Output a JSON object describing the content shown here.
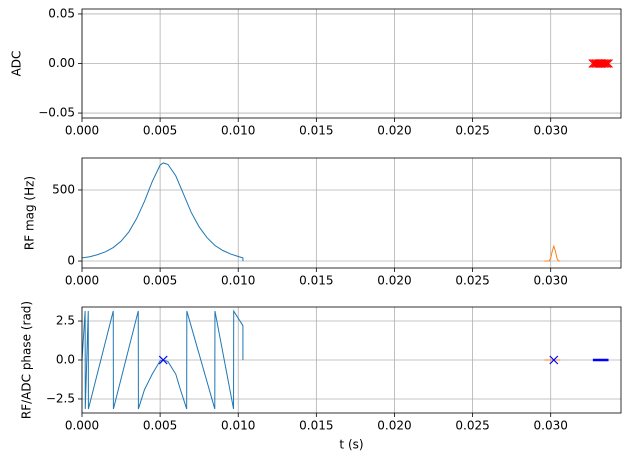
{
  "chart_data": [
    {
      "type": "line",
      "ylabel": "ADC",
      "xlim": [
        0,
        0.0345
      ],
      "ylim": [
        -0.055,
        0.055
      ],
      "xticks": [
        {
          "value": 0,
          "label": "0.000"
        },
        {
          "value": 0.005,
          "label": "0.005"
        },
        {
          "value": 0.01,
          "label": "0.010"
        },
        {
          "value": 0.015,
          "label": "0.015"
        },
        {
          "value": 0.02,
          "label": "0.020"
        },
        {
          "value": 0.025,
          "label": "0.025"
        },
        {
          "value": 0.03,
          "label": "0.030"
        }
      ],
      "yticks": [
        {
          "value": -0.05,
          "label": "−0.05"
        },
        {
          "value": 0,
          "label": "0.00"
        },
        {
          "value": 0.05,
          "label": "0.05"
        }
      ],
      "grid": true,
      "series": [
        {
          "color": "#ff0000",
          "marker": "x",
          "x": [
            0.0327,
            0.0328,
            0.0329,
            0.033,
            0.0331,
            0.0332,
            0.0333,
            0.0334,
            0.0335,
            0.0336,
            0.0337
          ],
          "values": [
            0,
            0,
            0,
            0,
            0,
            0,
            0,
            0,
            0,
            0,
            0
          ]
        }
      ]
    },
    {
      "type": "line",
      "ylabel": "RF mag (Hz)",
      "xlim": [
        0,
        0.0345
      ],
      "ylim": [
        -49,
        725
      ],
      "xticks": [
        {
          "value": 0,
          "label": "0.000"
        },
        {
          "value": 0.005,
          "label": "0.005"
        },
        {
          "value": 0.01,
          "label": "0.010"
        },
        {
          "value": 0.015,
          "label": "0.015"
        },
        {
          "value": 0.02,
          "label": "0.020"
        },
        {
          "value": 0.025,
          "label": "0.025"
        },
        {
          "value": 0.03,
          "label": "0.030"
        }
      ],
      "yticks": [
        0,
        500
      ],
      "grid": true,
      "series": [
        {
          "color": "#1f77b4",
          "x": [
            0,
            0.0005,
            0.001,
            0.0015,
            0.002,
            0.0025,
            0.003,
            0.0035,
            0.004,
            0.0045,
            0.005,
            0.0052,
            0.0055,
            0.006,
            0.0065,
            0.007,
            0.0075,
            0.008,
            0.0085,
            0.009,
            0.0095,
            0.01,
            0.0103,
            0.0103
          ],
          "values": [
            22,
            30,
            45,
            65,
            95,
            140,
            205,
            300,
            420,
            560,
            675,
            690,
            680,
            600,
            470,
            340,
            240,
            165,
            110,
            75,
            50,
            32,
            22,
            0
          ]
        },
        {
          "color": "#ff7f0e",
          "x": [
            0.0296,
            0.0299,
            0.03,
            0.0301,
            0.0302,
            0.0303,
            0.0304,
            0.0305,
            0.0306
          ],
          "values": [
            0,
            0,
            20,
            70,
            105,
            70,
            20,
            0,
            0
          ]
        }
      ]
    },
    {
      "type": "line",
      "ylabel": "RF/ADC phase (rad)",
      "xlabel": "t (s)",
      "xlim": [
        0,
        0.0345
      ],
      "ylim": [
        -3.4,
        3.4
      ],
      "xticks": [
        {
          "value": 0,
          "label": "0.000"
        },
        {
          "value": 0.005,
          "label": "0.005"
        },
        {
          "value": 0.01,
          "label": "0.010"
        },
        {
          "value": 0.015,
          "label": "0.015"
        },
        {
          "value": 0.02,
          "label": "0.020"
        },
        {
          "value": 0.025,
          "label": "0.025"
        },
        {
          "value": 0.03,
          "label": "0.030"
        }
      ],
      "yticks": [
        {
          "value": -2.5,
          "label": "−2.5"
        },
        {
          "value": 0,
          "label": "0.0"
        },
        2.5
      ],
      "grid": true,
      "series": [
        {
          "color": "#1f77b4",
          "x": [
            0,
            0.0002,
            0.00021,
            0.0004,
            0.00041,
            0.002,
            0.00201,
            0.0036,
            0.00361,
            0.004,
            0.0045,
            0.005,
            0.0052,
            0.0055,
            0.006,
            0.0063,
            0.0067,
            0.00671,
            0.0085,
            0.00851,
            0.0097,
            0.00971,
            0.0103,
            0.0103
          ],
          "values": [
            0,
            3.14,
            -3.14,
            3.14,
            -3.14,
            3.14,
            -3.14,
            3.14,
            -3.14,
            -1.9,
            -0.9,
            -0.05,
            0,
            -0.1,
            -0.9,
            -1.9,
            -3.14,
            3.14,
            -3.14,
            3.14,
            -3.14,
            3.14,
            2.2,
            0
          ]
        },
        {
          "color": "#ff7f0e",
          "x": [
            0.0296,
            0.0306
          ],
          "values": [
            0,
            0
          ]
        },
        {
          "color": "#0000ff",
          "marker": "x",
          "x": [
            0.0052,
            0.0302
          ],
          "values": [
            0,
            0
          ]
        },
        {
          "color": "#0000ff",
          "linewidth": 2.5,
          "x": [
            0.0327,
            0.0337
          ],
          "values": [
            0,
            0
          ]
        }
      ]
    }
  ]
}
